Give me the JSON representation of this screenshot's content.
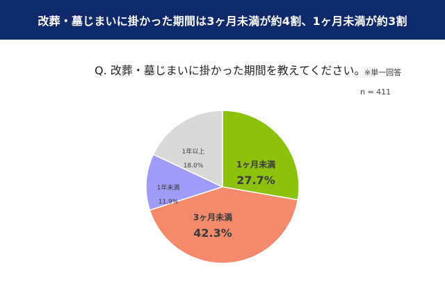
{
  "header": {
    "title": "改葬・墓じまいに掛かった期間は3ヶ月未満が約4割、1ヶ月未満が約3割"
  },
  "question": "Q. 改葬・墓じまいに掛かった期間を教えてください。",
  "note": "※単一回答",
  "sample": "n = 411",
  "chart_data": {
    "type": "pie",
    "title": "",
    "slices": [
      {
        "label": "1ヶ月未満",
        "value": 27.7,
        "value_label": "27.7%",
        "color": "#8cc10c",
        "label_color": "#3a3a3a",
        "emphasis": true
      },
      {
        "label": "3ヶ月未満",
        "value": 42.3,
        "value_label": "42.3%",
        "color": "#f4896c",
        "label_color": "#3a3a3a",
        "emphasis": true
      },
      {
        "label": "1年未満",
        "value": 11.9,
        "value_label": "11.9%",
        "color": "#9e9cf8",
        "label_color": "#3a3a3a",
        "emphasis": false
      },
      {
        "label": "1年以上",
        "value": 18.0,
        "value_label": "18.0%",
        "color": "#d9d9d9",
        "label_color": "#3a3a3a",
        "emphasis": false
      }
    ],
    "start": "12 o'clock",
    "direction": "clockwise",
    "legend": "none"
  }
}
